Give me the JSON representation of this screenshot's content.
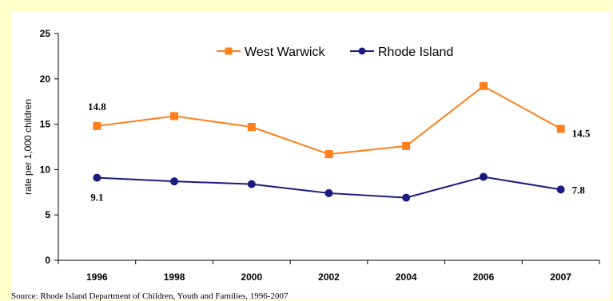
{
  "chart_data": {
    "type": "line",
    "title": "",
    "xlabel": "",
    "ylabel": "rate per 1,000 children",
    "categories": [
      "1996",
      "1998",
      "2000",
      "2002",
      "2004",
      "2006",
      "2007"
    ],
    "ylim": [
      0,
      25
    ],
    "yticks": [
      "0",
      "5",
      "10",
      "15",
      "20",
      "25"
    ],
    "grid": false,
    "legend_position": "top-center",
    "series": [
      {
        "name": "West Warwick",
        "color": "#ff7f1a",
        "marker": "square",
        "values": [
          14.8,
          15.9,
          14.7,
          11.7,
          12.6,
          19.2,
          14.5
        ]
      },
      {
        "name": "Rhode Island",
        "color": "#1a1a80",
        "marker": "circle",
        "values": [
          9.1,
          8.7,
          8.4,
          7.4,
          6.9,
          9.2,
          7.8
        ]
      }
    ],
    "data_labels": [
      {
        "text": "14.8"
      },
      {
        "text": "14.5"
      },
      {
        "text": "9.1"
      },
      {
        "text": "7.8"
      }
    ]
  },
  "source": "Source: Rhode Island Department of Children, Youth and Families, 1996-2007"
}
